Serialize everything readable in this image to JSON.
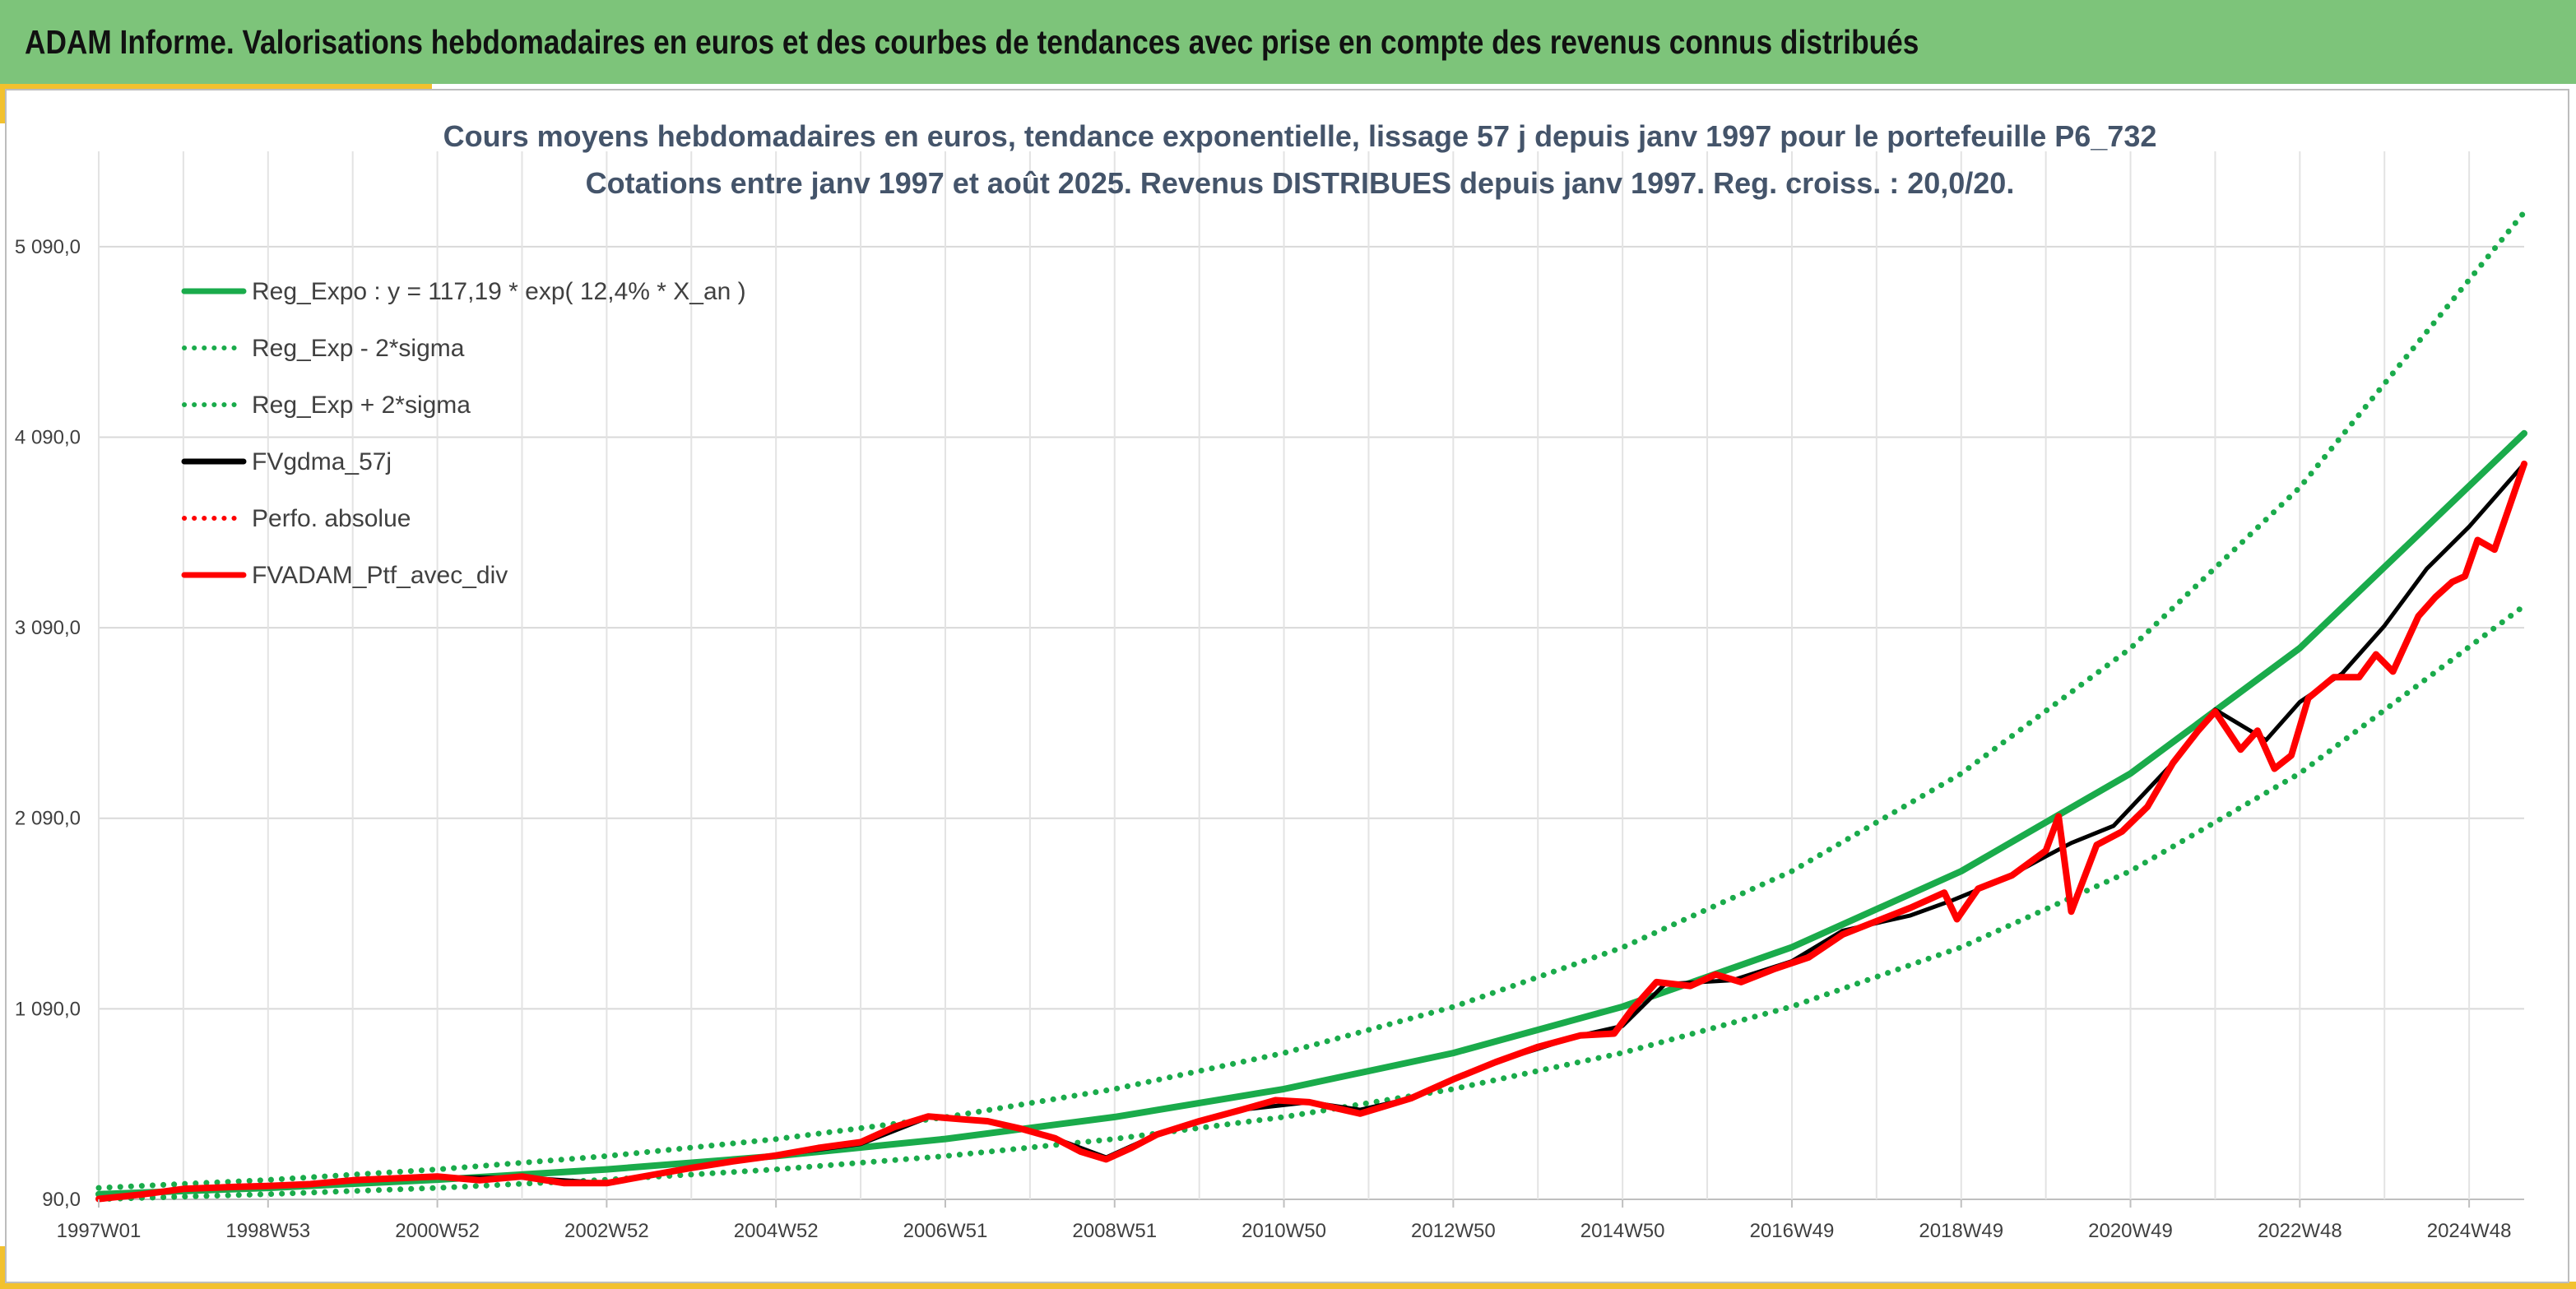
{
  "header": {
    "title": "ADAM Informe. Valorisations hebdomadaires en euros et des courbes de tendances avec prise en compte des revenus connus distribués"
  },
  "colors": {
    "banner": "#7dc47a",
    "accent": "#f2c12e",
    "reg_green": "#1aab4b",
    "gdma_black": "#000000",
    "portfolio_red": "#ff0000"
  },
  "chart_data": {
    "type": "line",
    "title": "Cours moyens hebdomadaires en euros, tendance exponentielle, lissage 57 j depuis janv 1997 pour le portefeuille P6_732",
    "subtitle": "Cotations entre janv 1997 et août 2025. Revenus DISTRIBUES depuis janv 1997. Reg. croiss. : 20,0/20.",
    "x_tick_labels": [
      "1997W01",
      "1998W53",
      "2000W52",
      "2002W52",
      "2004W52",
      "2006W51",
      "2008W51",
      "2010W50",
      "2012W50",
      "2014W50",
      "2016W49",
      "2018W49",
      "2020W49",
      "2022W48",
      "2024W48"
    ],
    "x_range_years": [
      1997.0,
      2025.65
    ],
    "y_tick_labels": [
      "90,0",
      "1 090,0",
      "2 090,0",
      "3 090,0",
      "4 090,0",
      "5 090,0"
    ],
    "y_ticks": [
      90,
      1090,
      2090,
      3090,
      4090,
      5090
    ],
    "ylim": [
      90,
      5590
    ],
    "grid": true,
    "legend_position": "top-left",
    "series": [
      {
        "name": "Reg_Expo : y = 117,19 * exp( 12,4% *  X_an )",
        "style": "solid",
        "color": "#1aab4b",
        "x": [
          1997,
          1999,
          2001,
          2003,
          2005,
          2007,
          2009,
          2011,
          2013,
          2015,
          2017,
          2019,
          2021,
          2023,
          2025.65
        ],
        "y": [
          117,
          150,
          193,
          247,
          317,
          407,
          522,
          669,
          858,
          1101,
          1413,
          1812,
          2325,
          2983,
          4110
        ]
      },
      {
        "name": "Reg_Exp - 2*sigma",
        "style": "dotted",
        "color": "#1aab4b",
        "x": [
          1997,
          1999,
          2001,
          2003,
          2005,
          2007,
          2009,
          2011,
          2013,
          2015,
          2017,
          2019,
          2021,
          2023,
          2025.65
        ],
        "y": [
          91,
          117,
          150,
          193,
          247,
          317,
          407,
          522,
          669,
          859,
          1102,
          1413,
          1813,
          2326,
          3205
        ]
      },
      {
        "name": "Reg_Exp + 2*sigma",
        "style": "dotted",
        "color": "#1aab4b",
        "x": [
          1997,
          1999,
          2001,
          2003,
          2005,
          2007,
          2009,
          2011,
          2013,
          2015,
          2017,
          2019,
          2021,
          2023,
          2025.65
        ],
        "y": [
          150,
          192,
          247,
          317,
          406,
          521,
          669,
          858,
          1100,
          1412,
          1812,
          2324,
          2982,
          3826,
          5270
        ]
      },
      {
        "name": "FVgdma_57j",
        "style": "solid",
        "color": "#000000",
        "x": [
          1997,
          1998,
          1999,
          2000,
          2001,
          2002,
          2003,
          2004,
          2005,
          2006,
          2006.8,
          2007.5,
          2008.3,
          2008.9,
          2009.5,
          2010.5,
          2011.3,
          2011.9,
          2012.5,
          2013.5,
          2014.5,
          2015.0,
          2015.5,
          2016.3,
          2017.0,
          2017.6,
          2018.4,
          2018.9,
          2019.5,
          2020.0,
          2020.3,
          2020.8,
          2021.5,
          2022.0,
          2022.6,
          2023.0,
          2023.5,
          2024.0,
          2024.5,
          2025.0,
          2025.65
        ],
        "y": [
          95,
          140,
          160,
          185,
          205,
          205,
          175,
          250,
          320,
          380,
          520,
          500,
          410,
          310,
          430,
          560,
          600,
          560,
          620,
          810,
          950,
          1000,
          1220,
          1240,
          1340,
          1500,
          1580,
          1660,
          1770,
          1890,
          1960,
          2050,
          2380,
          2660,
          2500,
          2700,
          2850,
          3100,
          3400,
          3620,
          3950
        ]
      },
      {
        "name": "Perfo. absolue",
        "style": "dotted",
        "color": "#ff0000",
        "x": [
          1997,
          1998,
          1999,
          2000,
          2001,
          2002,
          2003,
          2004,
          2005,
          2006,
          2006.8,
          2007.5,
          2008.3,
          2008.9,
          2009.5,
          2010.5,
          2011.3,
          2011.9,
          2012.5,
          2013.5,
          2014.5,
          2015.0,
          2015.5,
          2016.3,
          2017.0,
          2017.6,
          2018.4,
          2018.9,
          2019.5,
          2020.0,
          2020.3,
          2020.8,
          2021.5,
          2022.0,
          2022.6,
          2023.0,
          2023.5,
          2024.0,
          2024.5,
          2025.0,
          2025.65
        ],
        "y": [
          95,
          140,
          160,
          185,
          205,
          205,
          175,
          250,
          320,
          380,
          520,
          500,
          410,
          310,
          430,
          560,
          600,
          560,
          620,
          810,
          950,
          1000,
          1220,
          1240,
          1340,
          1500,
          1580,
          1660,
          1770,
          1890,
          1960,
          2050,
          2380,
          2660,
          2500,
          2700,
          2850,
          3100,
          3400,
          3620,
          3950
        ]
      },
      {
        "name": "FVADAM_Ptf_avec_div",
        "style": "solid",
        "color": "#ff0000",
        "x": [
          1997,
          1997.5,
          1998,
          1998.6,
          1999,
          1999.5,
          2000,
          2000.5,
          2001,
          2001.5,
          2002,
          2002.5,
          2003,
          2003.5,
          2004,
          2004.5,
          2005,
          2005.5,
          2006,
          2006.4,
          2006.8,
          2007.2,
          2007.5,
          2007.9,
          2008.3,
          2008.6,
          2008.9,
          2009.2,
          2009.5,
          2010,
          2010.5,
          2010.9,
          2011.3,
          2011.6,
          2011.9,
          2012.2,
          2012.5,
          2013,
          2013.5,
          2014,
          2014.5,
          2014.9,
          2015.1,
          2015.4,
          2015.8,
          2016.1,
          2016.4,
          2016.8,
          2017.2,
          2017.6,
          2018,
          2018.4,
          2018.8,
          2018.95,
          2019.2,
          2019.6,
          2020.0,
          2020.15,
          2020.3,
          2020.6,
          2020.9,
          2021.2,
          2021.5,
          2021.8,
          2022.0,
          2022.3,
          2022.5,
          2022.7,
          2022.9,
          2023.1,
          2023.4,
          2023.7,
          2023.9,
          2024.1,
          2024.4,
          2024.6,
          2024.8,
          2024.95,
          2025.1,
          2025.3,
          2025.65
        ],
        "y": [
          92,
          115,
          145,
          155,
          160,
          170,
          190,
          200,
          210,
          190,
          210,
          175,
          175,
          215,
          255,
          290,
          320,
          360,
          390,
          470,
          525,
          510,
          500,
          460,
          410,
          340,
          300,
          360,
          430,
          500,
          560,
          610,
          600,
          570,
          540,
          580,
          620,
          720,
          810,
          890,
          950,
          960,
          1080,
          1230,
          1210,
          1270,
          1230,
          1300,
          1360,
          1480,
          1550,
          1620,
          1700,
          1560,
          1720,
          1790,
          1920,
          2100,
          1600,
          1950,
          2020,
          2150,
          2380,
          2550,
          2650,
          2450,
          2550,
          2350,
          2420,
          2720,
          2830,
          2830,
          2950,
          2860,
          3150,
          3250,
          3330,
          3360,
          3550,
          3500,
          3950
        ]
      }
    ]
  }
}
